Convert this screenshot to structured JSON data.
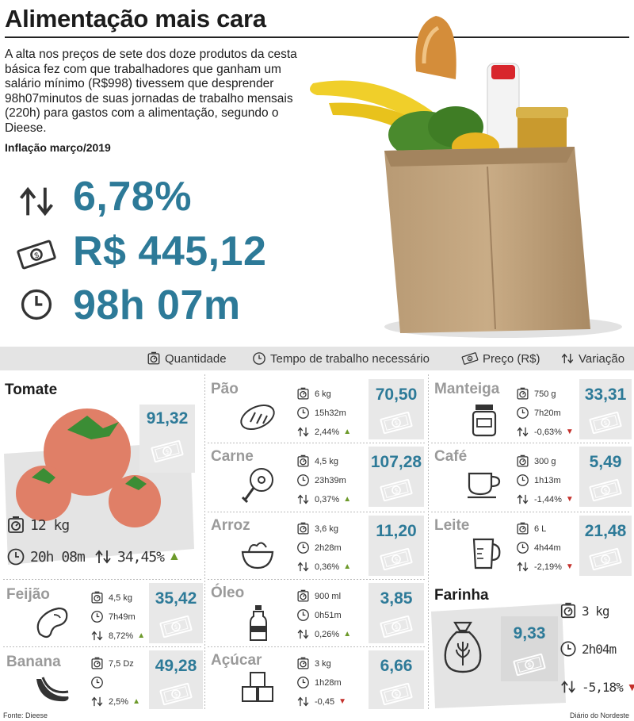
{
  "header": {
    "title": "Alimentação mais cara",
    "intro": "A alta nos preços de sete dos doze produtos da cesta básica fez com que trabalhadores que ganham um salário mínimo (R$998) tivessem que desprender 98h07minutos de suas jornadas de trabalho mensais (220h) para gastos com a alimentação, segundo o Dieese.",
    "subtitle": "Inflação março/2019"
  },
  "highlights": {
    "inflation": "6,78%",
    "cost": "R$ 445,12",
    "time": "98h 07m"
  },
  "legend": {
    "quantity": "Quantidade",
    "time": "Tempo de trabalho necessário",
    "price": "Preço (R$)",
    "variation": "Variação"
  },
  "colors": {
    "accent": "#2d7a98",
    "up": "#6d9a2b",
    "down": "#c4302b",
    "panel": "#e4e4e4"
  },
  "products": {
    "tomate": {
      "name": "Tomate",
      "qty": "12 kg",
      "time": "20h 08m",
      "var": "34,45%",
      "price": "91,32",
      "trend": "up"
    },
    "pao": {
      "name": "Pão",
      "qty": "6 kg",
      "time": "15h32m",
      "var": "2,44%",
      "price": "70,50",
      "trend": "up"
    },
    "carne": {
      "name": "Carne",
      "qty": "4,5 kg",
      "time": "23h39m",
      "var": "0,37%",
      "price": "107,28",
      "trend": "up"
    },
    "arroz": {
      "name": "Arroz",
      "qty": "3,6 kg",
      "time": "2h28m",
      "var": "0,36%",
      "price": "11,20",
      "trend": "up"
    },
    "oleo": {
      "name": "Óleo",
      "qty": "900 ml",
      "time": "0h51m",
      "var": "0,26%",
      "price": "3,85",
      "trend": "up"
    },
    "acucar": {
      "name": "Açúcar",
      "qty": "3 kg",
      "time": "1h28m",
      "var": "-0,45",
      "price": "6,66",
      "trend": "down"
    },
    "manteiga": {
      "name": "Manteiga",
      "qty": "750 g",
      "time": "7h20m",
      "var": "-0,63%",
      "price": "33,31",
      "trend": "down"
    },
    "cafe": {
      "name": "Café",
      "qty": "300 g",
      "time": "1h13m",
      "var": "-1,44%",
      "price": "5,49",
      "trend": "down"
    },
    "leite": {
      "name": "Leite",
      "qty": "6 L",
      "time": "4h44m",
      "var": "-2,19%",
      "price": "21,48",
      "trend": "down"
    },
    "feijao": {
      "name": "Feijão",
      "qty": "4,5 kg",
      "time": "7h49m",
      "var": "8,72%",
      "price": "35,42",
      "trend": "up"
    },
    "banana": {
      "name": "Banana",
      "qty": "7,5 Dz",
      "time": "",
      "var": "2,5%",
      "price": "49,28",
      "trend": "up"
    },
    "farinha": {
      "name": "Farinha",
      "qty": "3 kg",
      "time": "2h04m",
      "var": "-5,18%",
      "price": "9,33",
      "trend": "down"
    }
  },
  "footer": {
    "source": "Fonte: Dieese",
    "publisher": "Diário do Nordeste"
  }
}
